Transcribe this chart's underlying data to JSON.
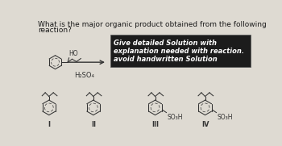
{
  "title_line1": "What is the major organic product obtained from the following",
  "title_line2": "reaction?",
  "reagent": "H₂SO₄",
  "box_text_line1": "Give detailed Solution with",
  "box_text_line2": "explanation needed with reaction.",
  "box_text_line3": "avoid handwritten Solution",
  "labels": [
    "I",
    "II",
    "III",
    "IV"
  ],
  "so3h_label": "SO₃H",
  "bg_color": "#dedad2",
  "box_bg": "#1c1c1c",
  "box_text_color": "#ffffff",
  "text_color": "#1a1a1a",
  "title_fontsize": 6.5,
  "label_fontsize": 6,
  "structure_color": "#333333"
}
